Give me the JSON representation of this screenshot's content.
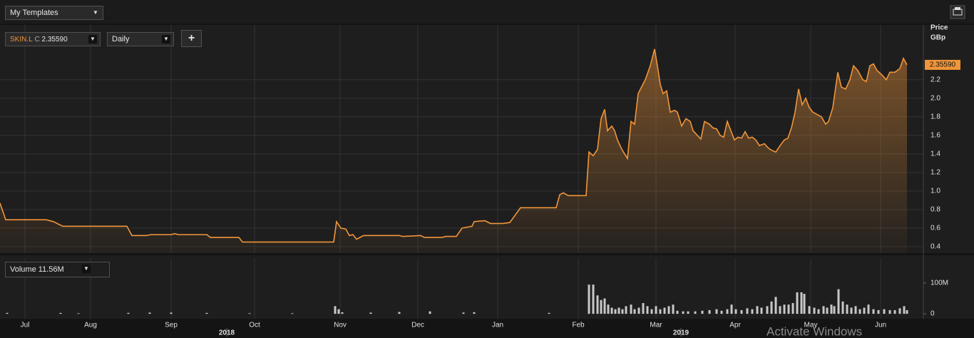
{
  "ui": {
    "template_menu": "My Templates",
    "symbol": "SKIN.L",
    "close_prefix": "C",
    "close_value": "2.35590",
    "interval": "Daily",
    "add_button": "+",
    "volume_label": "Volume",
    "volume_value": "11.56M",
    "watermark": "Activate Windows"
  },
  "chart_data": [
    {
      "type": "line",
      "axis_title": "Price",
      "axis_unit": "GBp",
      "color": "#f0953a",
      "last_label": "2.35590",
      "xlim": [
        0,
        1295
      ],
      "ylim": [
        0.33,
        2.79
      ],
      "grid": true,
      "yticks": [
        0.4,
        0.6,
        0.8,
        {
          "value": 1,
          "label": "1.0"
        },
        1.2,
        1.4,
        1.6,
        1.8,
        {
          "value": 2,
          "label": "2.0"
        },
        2.2
      ],
      "xticks": [
        {
          "value": 35,
          "label": "Jul"
        },
        {
          "value": 127,
          "label": "Aug"
        },
        {
          "value": 240,
          "label": "Sep"
        },
        {
          "value": 357,
          "label": "Oct"
        },
        {
          "value": 477,
          "label": "Nov"
        },
        {
          "value": 586,
          "label": "Dec"
        },
        {
          "value": 698,
          "label": "Jan"
        },
        {
          "value": 811,
          "label": "Feb"
        },
        {
          "value": 920,
          "label": "Mar"
        },
        {
          "value": 1031,
          "label": "Apr"
        },
        {
          "value": 1137,
          "label": "May"
        },
        {
          "value": 1235,
          "label": "Jun"
        }
      ],
      "year_labels": [
        {
          "value": 318,
          "label": "2018"
        },
        {
          "value": 955,
          "label": "2019"
        }
      ],
      "price": {
        "x": [
          0,
          8,
          65,
          75,
          88,
          178,
          185,
          205,
          212,
          240,
          245,
          250,
          290,
          295,
          335,
          340,
          468,
          472,
          478,
          485,
          490,
          495,
          500,
          510,
          560,
          565,
          590,
          595,
          620,
          625,
          640,
          648,
          655,
          662,
          665,
          680,
          688,
          705,
          715,
          730,
          780,
          785,
          790,
          797,
          822,
          826,
          832,
          838,
          843,
          848,
          852,
          858,
          862,
          866,
          872,
          876,
          880,
          885,
          890,
          895,
          905,
          912,
          918,
          922,
          926,
          930,
          935,
          940,
          946,
          950,
          956,
          962,
          968,
          972,
          978,
          983,
          988,
          995,
          1000,
          1005,
          1010,
          1015,
          1020,
          1025,
          1030,
          1035,
          1040,
          1045,
          1050,
          1055,
          1060,
          1065,
          1072,
          1078,
          1082,
          1088,
          1095,
          1100,
          1105,
          1110,
          1115,
          1120,
          1125,
          1130,
          1135,
          1140,
          1145,
          1152,
          1158,
          1162,
          1168,
          1175,
          1180,
          1186,
          1192,
          1197,
          1203,
          1210,
          1215,
          1220,
          1225,
          1230,
          1237,
          1243,
          1248,
          1255,
          1262,
          1267,
          1272
        ],
        "values": [
          0.87,
          0.69,
          0.69,
          0.67,
          0.62,
          0.62,
          0.52,
          0.52,
          0.53,
          0.53,
          0.54,
          0.53,
          0.53,
          0.5,
          0.5,
          0.45,
          0.45,
          0.67,
          0.6,
          0.59,
          0.52,
          0.53,
          0.48,
          0.52,
          0.52,
          0.51,
          0.52,
          0.5,
          0.5,
          0.51,
          0.51,
          0.6,
          0.61,
          0.62,
          0.67,
          0.68,
          0.65,
          0.65,
          0.66,
          0.82,
          0.82,
          0.96,
          0.98,
          0.95,
          0.95,
          1.42,
          1.38,
          1.45,
          1.78,
          1.88,
          1.65,
          1.7,
          1.65,
          1.55,
          1.45,
          1.4,
          1.35,
          1.75,
          1.72,
          2.05,
          2.2,
          2.35,
          2.53,
          2.35,
          2.15,
          2.05,
          2.08,
          1.85,
          1.87,
          1.85,
          1.7,
          1.78,
          1.75,
          1.65,
          1.6,
          1.56,
          1.75,
          1.72,
          1.68,
          1.67,
          1.6,
          1.58,
          1.75,
          1.65,
          1.55,
          1.58,
          1.57,
          1.64,
          1.57,
          1.58,
          1.55,
          1.49,
          1.51,
          1.46,
          1.44,
          1.42,
          1.5,
          1.55,
          1.57,
          1.68,
          1.85,
          2.1,
          1.93,
          2.0,
          1.9,
          1.85,
          1.83,
          1.8,
          1.72,
          1.75,
          1.9,
          2.28,
          2.12,
          2.1,
          2.2,
          2.35,
          2.3,
          2.2,
          2.18,
          2.35,
          2.37,
          2.3,
          2.25,
          2.2,
          2.28,
          2.28,
          2.32,
          2.43,
          2.36
        ]
      }
    },
    {
      "type": "bar",
      "color": "#c8c8c8",
      "xlim": [
        0,
        1295
      ],
      "ylim": [
        -16,
        181
      ],
      "yticks": [
        0,
        {
          "value": 100,
          "label": "100M"
        }
      ],
      "x": [
        10,
        85,
        110,
        180,
        210,
        240,
        290,
        350,
        410,
        470,
        475,
        480,
        520,
        560,
        603,
        650,
        665,
        770,
        826,
        832,
        838,
        843,
        848,
        853,
        858,
        863,
        868,
        873,
        878,
        885,
        890,
        896,
        902,
        908,
        914,
        920,
        926,
        932,
        938,
        944,
        950,
        958,
        965,
        975,
        985,
        995,
        1005,
        1012,
        1020,
        1026,
        1032,
        1040,
        1048,
        1055,
        1062,
        1068,
        1076,
        1082,
        1088,
        1094,
        1100,
        1106,
        1112,
        1118,
        1124,
        1128,
        1135,
        1142,
        1148,
        1155,
        1160,
        1166,
        1170,
        1176,
        1182,
        1188,
        1194,
        1200,
        1206,
        1212,
        1218,
        1225,
        1232,
        1240,
        1248,
        1255,
        1262,
        1268,
        1272
      ],
      "values": [
        3,
        3,
        2,
        3,
        4,
        4,
        3,
        2,
        2,
        25,
        15,
        5,
        4,
        6,
        8,
        4,
        5,
        3,
        95,
        95,
        60,
        45,
        50,
        30,
        20,
        15,
        20,
        15,
        25,
        30,
        15,
        20,
        35,
        25,
        15,
        25,
        15,
        20,
        25,
        30,
        10,
        8,
        8,
        8,
        10,
        12,
        15,
        10,
        15,
        30,
        15,
        12,
        18,
        15,
        25,
        20,
        25,
        40,
        55,
        25,
        30,
        30,
        35,
        70,
        70,
        65,
        25,
        20,
        15,
        25,
        20,
        30,
        25,
        80,
        40,
        30,
        20,
        25,
        15,
        20,
        30,
        15,
        12,
        15,
        12,
        12,
        18,
        25,
        12
      ]
    }
  ]
}
